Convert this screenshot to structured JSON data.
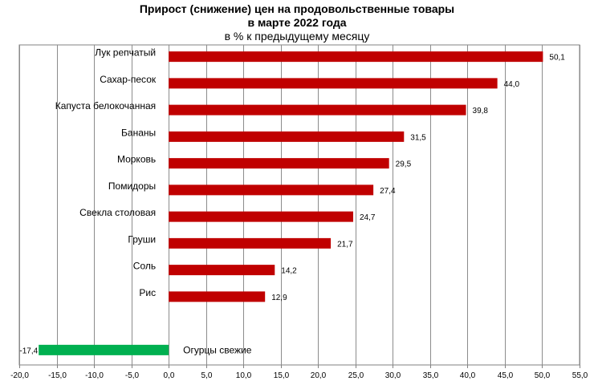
{
  "chart_data": {
    "type": "bar",
    "orientation": "horizontal",
    "title_line1": "Прирост (снижение) цен на продовольственные  товары",
    "title_line2": "в марте 2022 года",
    "subtitle": "в % к предыдущему месяцу",
    "xlim": [
      -20,
      55
    ],
    "x_ticks": [
      "-20,0",
      "-15,0",
      "-10,0",
      "-5,0",
      "0,0",
      "5,0",
      "10,0",
      "15,0",
      "20,0",
      "25,0",
      "30,0",
      "35,0",
      "40,0",
      "45,0",
      "50,0",
      "55,0"
    ],
    "grid": true,
    "categories": [
      "Лук репчатый",
      "Сахар-песок",
      "Капуста белокочанная",
      "Бананы",
      "Морковь",
      "Помидоры",
      "Свекла столовая",
      "Груши",
      "Соль",
      "Рис",
      "",
      "Огурцы свежие"
    ],
    "values": [
      50.1,
      44.0,
      39.8,
      31.5,
      29.5,
      27.4,
      24.7,
      21.7,
      14.2,
      12.9,
      null,
      -17.4
    ],
    "value_labels": [
      "50,1",
      "44,0",
      "39,8",
      "31,5",
      "29,5",
      "27,4",
      "24,7",
      "21,7",
      "14,2",
      "12,9",
      "",
      "-17,4"
    ],
    "colors": {
      "positive": "#c00000",
      "negative": "#00b050"
    }
  }
}
